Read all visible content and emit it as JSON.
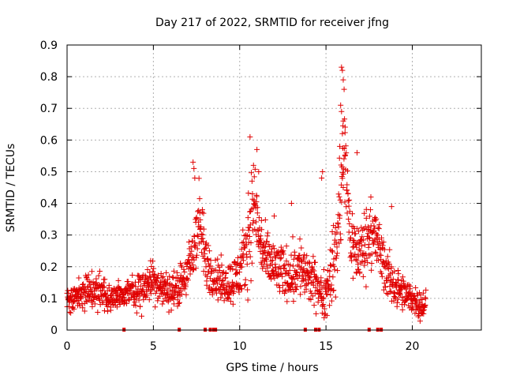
{
  "chart_data": {
    "type": "scatter",
    "title": "Day 217 of 2022, SRMTID for receiver jfng",
    "xlabel": "GPS time / hours",
    "ylabel": "SRMTID / TECUs",
    "xlim": [
      0,
      24
    ],
    "ylim": [
      0,
      0.9
    ],
    "xticks": [
      "0",
      "5",
      "10",
      "15",
      "20"
    ],
    "yticks": [
      "0",
      "0.1",
      "0.2",
      "0.3",
      "0.4",
      "0.5",
      "0.6",
      "0.7",
      "0.8",
      "0.9"
    ],
    "grid": true,
    "marker": "+",
    "color": "#e00000",
    "envelope": {
      "x": [
        0,
        0.5,
        1,
        1.5,
        2,
        2.5,
        3,
        3.5,
        4,
        4.5,
        5,
        5.5,
        6,
        6.5,
        7,
        7.3,
        7.6,
        7.8,
        8,
        8.5,
        9,
        9.5,
        10,
        10.3,
        10.6,
        10.9,
        11.1,
        11.5,
        12,
        12.5,
        13,
        13.5,
        14,
        14.5,
        14.8,
        15,
        15.3,
        15.6,
        15.9,
        16.1,
        16.4,
        16.8,
        17.2,
        17.6,
        18,
        18.5,
        19,
        19.5,
        20,
        20.5,
        20.8
      ],
      "center": [
        0.09,
        0.11,
        0.12,
        0.12,
        0.12,
        0.1,
        0.11,
        0.11,
        0.12,
        0.14,
        0.16,
        0.13,
        0.12,
        0.14,
        0.18,
        0.24,
        0.35,
        0.3,
        0.22,
        0.17,
        0.15,
        0.15,
        0.18,
        0.22,
        0.34,
        0.4,
        0.3,
        0.22,
        0.2,
        0.18,
        0.18,
        0.2,
        0.16,
        0.14,
        0.1,
        0.12,
        0.18,
        0.25,
        0.45,
        0.55,
        0.3,
        0.24,
        0.26,
        0.32,
        0.27,
        0.18,
        0.14,
        0.11,
        0.1,
        0.08,
        0.08
      ],
      "spread": [
        0.03,
        0.04,
        0.04,
        0.05,
        0.05,
        0.04,
        0.04,
        0.04,
        0.05,
        0.06,
        0.06,
        0.05,
        0.05,
        0.05,
        0.07,
        0.1,
        0.12,
        0.1,
        0.08,
        0.06,
        0.06,
        0.06,
        0.08,
        0.1,
        0.15,
        0.12,
        0.1,
        0.08,
        0.08,
        0.07,
        0.08,
        0.09,
        0.07,
        0.06,
        0.06,
        0.07,
        0.09,
        0.12,
        0.2,
        0.15,
        0.1,
        0.09,
        0.1,
        0.1,
        0.09,
        0.07,
        0.06,
        0.05,
        0.04,
        0.04,
        0.04
      ]
    },
    "outliers": [
      {
        "x": 15.9,
        "y": 0.83
      },
      {
        "x": 15.95,
        "y": 0.82
      },
      {
        "x": 16.0,
        "y": 0.79
      },
      {
        "x": 16.05,
        "y": 0.76
      },
      {
        "x": 15.85,
        "y": 0.71
      },
      {
        "x": 15.9,
        "y": 0.69
      },
      {
        "x": 16.0,
        "y": 0.66
      },
      {
        "x": 15.95,
        "y": 0.62
      },
      {
        "x": 15.8,
        "y": 0.58
      },
      {
        "x": 16.1,
        "y": 0.55
      },
      {
        "x": 10.6,
        "y": 0.61
      },
      {
        "x": 11.0,
        "y": 0.57
      },
      {
        "x": 10.8,
        "y": 0.52
      },
      {
        "x": 11.1,
        "y": 0.5
      },
      {
        "x": 7.3,
        "y": 0.53
      },
      {
        "x": 7.35,
        "y": 0.51
      },
      {
        "x": 7.4,
        "y": 0.48
      },
      {
        "x": 14.8,
        "y": 0.5
      },
      {
        "x": 14.75,
        "y": 0.48
      },
      {
        "x": 16.8,
        "y": 0.56
      },
      {
        "x": 17.6,
        "y": 0.42
      },
      {
        "x": 18.8,
        "y": 0.39
      },
      {
        "x": 13.0,
        "y": 0.4
      },
      {
        "x": 12.0,
        "y": 0.36
      }
    ],
    "zero_markers": [
      3.3,
      6.5,
      8.0,
      8.3,
      8.5,
      8.6,
      13.8,
      14.4,
      14.6,
      17.5,
      18.0,
      18.2
    ],
    "x_end": 20.8
  }
}
